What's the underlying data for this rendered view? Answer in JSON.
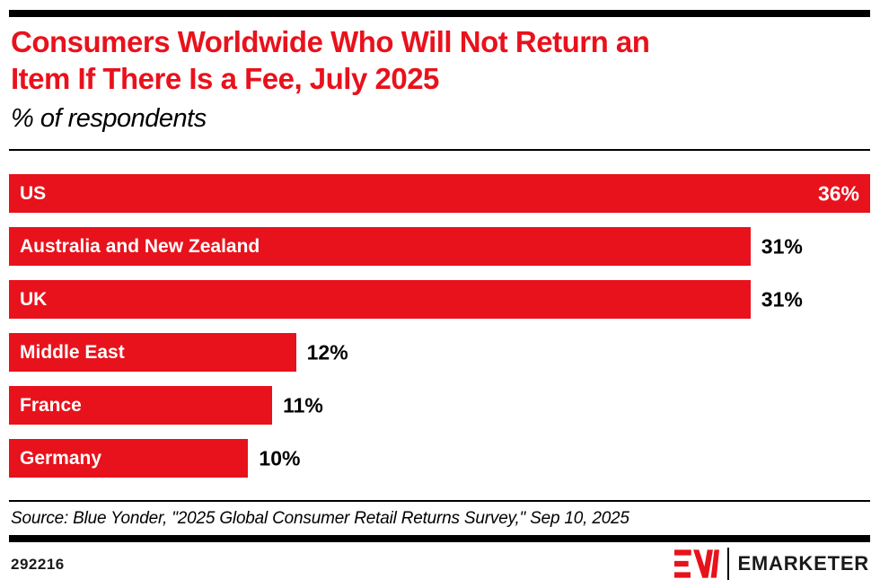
{
  "header": {
    "title_line1": "Consumers Worldwide Who Will Not Return an",
    "title_line2": "Item If There Is a Fee, July 2025",
    "subtitle": "% of respondents"
  },
  "chart_data": {
    "type": "bar",
    "orientation": "horizontal",
    "title": "Consumers Worldwide Who Will Not Return an Item If There Is a Fee, July 2025",
    "subtitle": "% of respondents",
    "categories": [
      "US",
      "Australia and New Zealand",
      "UK",
      "Middle East",
      "France",
      "Germany"
    ],
    "values": [
      36,
      31,
      31,
      12,
      11,
      10
    ],
    "value_suffix": "%",
    "xlabel": "",
    "ylabel": "",
    "xlim": [
      0,
      36
    ],
    "grid": false,
    "legend": false,
    "bar_color": "#e8121c",
    "value_label_placement": "inside bar for max value (white), outside right of bar (black) for others"
  },
  "source": {
    "text": "Source: Blue Yonder, \"2025 Global Consumer Retail Returns Survey,\" Sep 10, 2025"
  },
  "footer": {
    "chart_id": "292216",
    "brand": "EMARKETER",
    "logo": "em-monogram"
  },
  "colors": {
    "accent": "#e8121c",
    "bar_label_text": "#ffffff",
    "text": "#000000",
    "rules": "#000000"
  }
}
